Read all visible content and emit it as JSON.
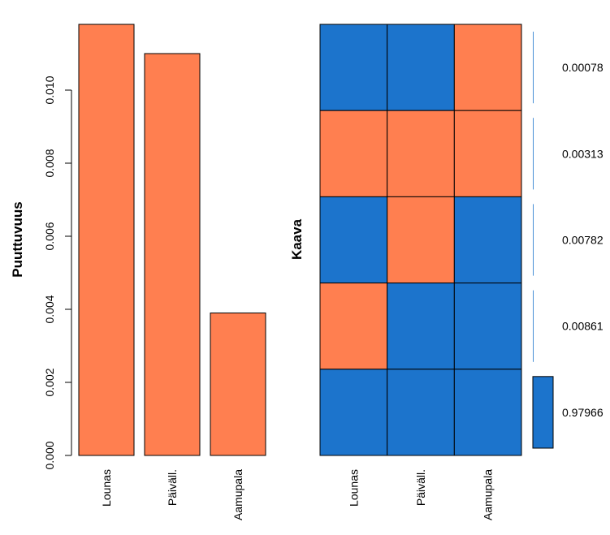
{
  "chart_data": [
    {
      "type": "bar",
      "categories": [
        "Lounas",
        "Päiväll.",
        "Aamupala"
      ],
      "values": [
        0.0118,
        0.011,
        0.0039
      ],
      "ylabel": "Puuttuvuus",
      "yticks": [
        "0.000",
        "0.002",
        "0.004",
        "0.006",
        "0.008",
        "0.010"
      ],
      "ylim": [
        0,
        0.0118
      ],
      "bar_color": "#ff7f50"
    },
    {
      "type": "heatmap",
      "ylabel": "Kaava",
      "columns": [
        "Lounas",
        "Päiväll.",
        "Aamupala"
      ],
      "rows": [
        {
          "proportion": "0.00078",
          "value": 0.00078,
          "missing": [
            false,
            false,
            true
          ]
        },
        {
          "proportion": "0.00313",
          "value": 0.00313,
          "missing": [
            true,
            true,
            true
          ]
        },
        {
          "proportion": "0.00782",
          "value": 0.00782,
          "missing": [
            false,
            true,
            false
          ]
        },
        {
          "proportion": "0.00861",
          "value": 0.00861,
          "missing": [
            true,
            false,
            false
          ]
        },
        {
          "proportion": "0.97966",
          "value": 0.97966,
          "missing": [
            false,
            false,
            false
          ]
        }
      ],
      "missing_color": "#ff7f50",
      "observed_color": "#1c74cc"
    }
  ]
}
